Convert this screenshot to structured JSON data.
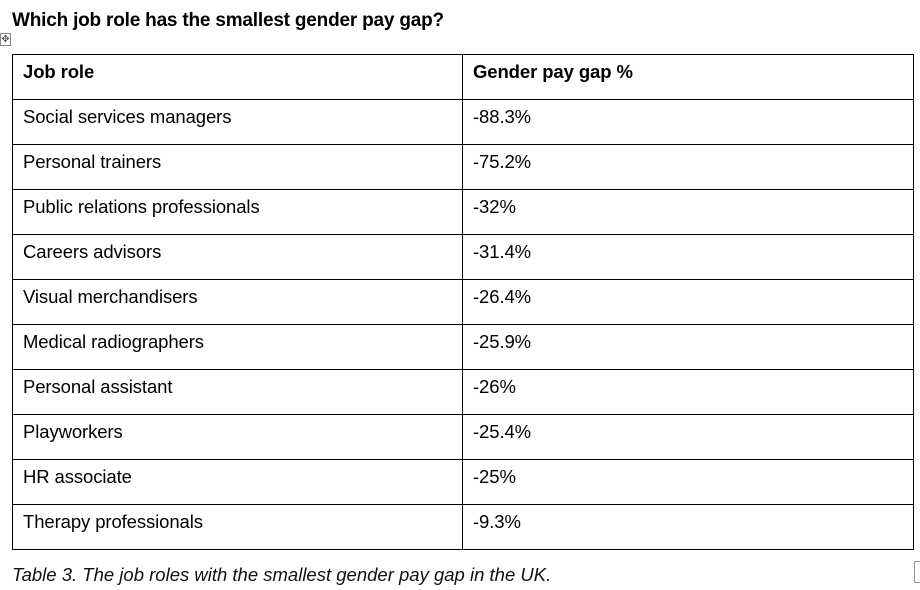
{
  "title": "Which job role has the smallest gender pay gap?",
  "table": {
    "headers": [
      "Job role",
      "Gender pay gap %"
    ],
    "rows": [
      [
        "Social services managers",
        "-88.3%"
      ],
      [
        "Personal trainers",
        "-75.2%"
      ],
      [
        "Public relations professionals",
        "-32%"
      ],
      [
        "Careers advisors",
        "-31.4%"
      ],
      [
        "Visual merchandisers",
        "-26.4%"
      ],
      [
        "Medical radiographers",
        "-25.9%"
      ],
      [
        "Personal assistant",
        "-26%"
      ],
      [
        "Playworkers",
        "-25.4%"
      ],
      [
        "HR associate",
        "-25%"
      ],
      [
        "Therapy professionals",
        "-9.3%"
      ]
    ]
  },
  "caption": "Table 3. The job roles with the smallest gender pay gap in the UK.",
  "icons": {
    "move_handle": "table-move-handle-icon",
    "resize_handle": "table-resize-handle-icon"
  }
}
